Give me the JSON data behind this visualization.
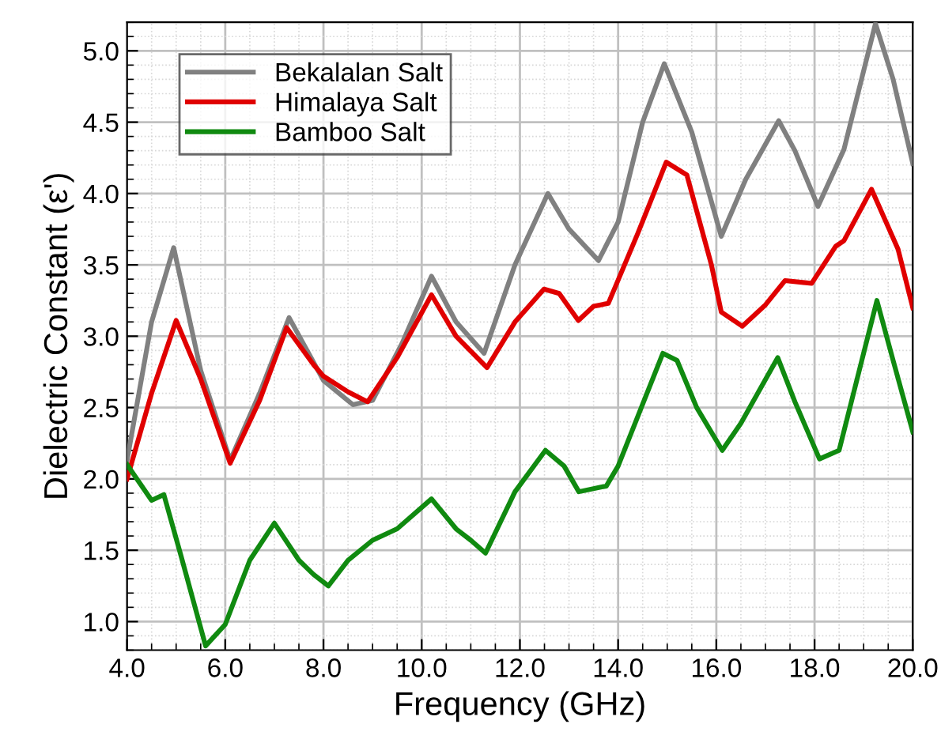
{
  "chart_data": {
    "type": "line",
    "xlabel": "Frequency (GHz)",
    "ylabel": "Dielectric Constant (ε')",
    "xlim": [
      4.0,
      20.0
    ],
    "ylim": [
      0.8,
      5.2
    ],
    "xticks": [
      {
        "value": 4,
        "label": "4.0"
      },
      {
        "value": 6,
        "label": "6.0"
      },
      {
        "value": 8,
        "label": "8.0"
      },
      {
        "value": 10,
        "label": "10.0"
      },
      {
        "value": 12,
        "label": "12.0"
      },
      {
        "value": 14,
        "label": "14.0"
      },
      {
        "value": 16,
        "label": "16.0"
      },
      {
        "value": 18,
        "label": "18.0"
      },
      {
        "value": 20,
        "label": "20.0"
      }
    ],
    "yticks": [
      {
        "value": 1,
        "label": "1.0"
      },
      1.5,
      {
        "value": 2,
        "label": "2.0"
      },
      2.5,
      {
        "value": 3,
        "label": "3.0"
      },
      3.5,
      {
        "value": 4,
        "label": "4.0"
      },
      4.5,
      {
        "value": 5,
        "label": "5.0"
      }
    ],
    "grid": true,
    "legend": "top left",
    "marker": "none",
    "line_style": "solid",
    "series": [
      {
        "name": "Bekalalan Salt",
        "color": "#808080",
        "x": [
          4.0,
          4.5,
          4.95,
          5.5,
          6.1,
          6.7,
          7.3,
          8.0,
          8.6,
          9.0,
          9.6,
          10.2,
          10.7,
          11.27,
          11.9,
          12.57,
          13.0,
          13.6,
          14.0,
          14.5,
          14.94,
          15.5,
          16.1,
          16.6,
          17.27,
          17.6,
          18.07,
          18.6,
          19.24,
          19.6,
          20.0
        ],
        "values": [
          2.13,
          3.1,
          3.62,
          2.76,
          2.13,
          2.6,
          3.13,
          2.69,
          2.52,
          2.55,
          2.95,
          3.42,
          3.1,
          2.88,
          3.5,
          4.0,
          3.75,
          3.53,
          3.8,
          4.5,
          4.91,
          4.43,
          3.7,
          4.1,
          4.51,
          4.3,
          3.91,
          4.31,
          5.19,
          4.8,
          4.21
        ]
      },
      {
        "name": "Himalaya Salt",
        "color": "#e00000",
        "x": [
          4.0,
          4.5,
          5.0,
          5.5,
          6.1,
          6.7,
          7.25,
          7.8,
          8.0,
          8.5,
          8.9,
          9.5,
          10.2,
          10.7,
          11.33,
          11.9,
          12.49,
          12.8,
          13.19,
          13.5,
          13.8,
          14.4,
          14.98,
          15.4,
          15.9,
          16.1,
          16.53,
          17.0,
          17.4,
          17.94,
          18.43,
          18.6,
          19.16,
          19.7,
          20.0
        ],
        "values": [
          2.0,
          2.6,
          3.11,
          2.7,
          2.11,
          2.55,
          3.06,
          2.8,
          2.72,
          2.61,
          2.54,
          2.85,
          3.29,
          3.0,
          2.78,
          3.1,
          3.33,
          3.3,
          3.11,
          3.21,
          3.23,
          3.72,
          4.22,
          4.13,
          3.5,
          3.17,
          3.07,
          3.22,
          3.39,
          3.37,
          3.63,
          3.67,
          4.03,
          3.61,
          3.2
        ]
      },
      {
        "name": "Bamboo Salt",
        "color": "#108a10",
        "x": [
          4.0,
          4.5,
          4.75,
          5.1,
          5.6,
          6.0,
          6.5,
          7.0,
          7.5,
          7.8,
          8.1,
          8.5,
          9.0,
          9.5,
          10.2,
          10.7,
          11.0,
          11.3,
          11.9,
          12.52,
          12.9,
          13.2,
          13.76,
          14.0,
          14.91,
          15.2,
          15.6,
          16.12,
          16.5,
          17.25,
          17.6,
          18.1,
          18.5,
          19.27,
          19.6,
          20.0
        ],
        "values": [
          2.1,
          1.85,
          1.89,
          1.46,
          0.83,
          0.98,
          1.43,
          1.69,
          1.43,
          1.33,
          1.25,
          1.43,
          1.57,
          1.65,
          1.86,
          1.65,
          1.57,
          1.48,
          1.91,
          2.2,
          2.09,
          1.91,
          1.95,
          2.09,
          2.88,
          2.83,
          2.5,
          2.2,
          2.39,
          2.85,
          2.54,
          2.14,
          2.2,
          3.25,
          2.83,
          2.33
        ]
      }
    ]
  }
}
